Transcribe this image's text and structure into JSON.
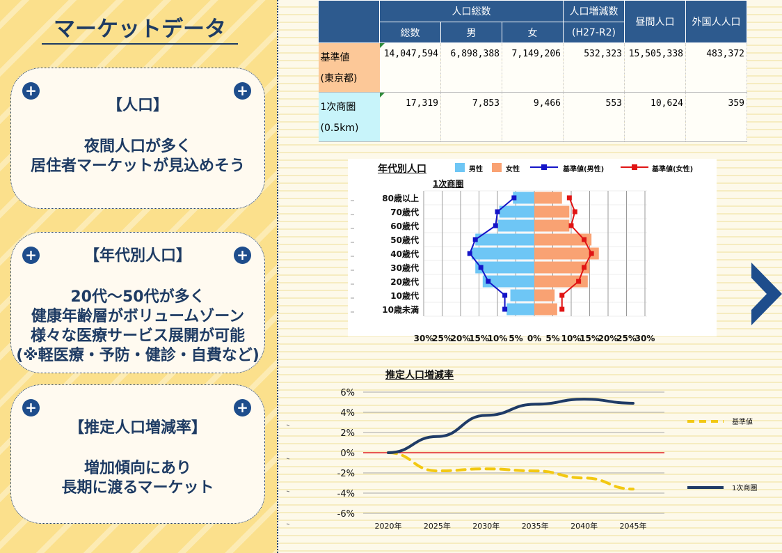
{
  "sidebar": {
    "title": "マーケットデータ",
    "cards": [
      {
        "title": "【人口】",
        "lines": [
          "夜間人口が多く",
          "居住者マーケットが見込めそう"
        ]
      },
      {
        "title": "【年代別人口】",
        "lines": [
          "20代～50代が多く",
          "健康年齢層がボリュームゾーン",
          "様々な医療サービス展開が可能",
          "(※軽医療・予防・健診・自費など)"
        ]
      },
      {
        "title": "【推定人口増減率】",
        "lines": [
          "増加傾向にあり",
          "長期に渡るマーケット"
        ]
      }
    ],
    "plus_symbol": "+"
  },
  "table": {
    "group_header": "人口総数",
    "headers": [
      "総数",
      "男",
      "女"
    ],
    "col_change": "人口増減数",
    "col_change_sub": "(H27-R2)",
    "col_daytime": "昼間人口",
    "col_foreign": "外国人人口",
    "rows": [
      {
        "label": [
          "基準値",
          "(東京都)"
        ],
        "values": [
          "14,047,594",
          "6,898,388",
          "7,149,206",
          "532,323",
          "15,505,338",
          "483,372"
        ],
        "color": "#fcc898"
      },
      {
        "label": [
          "1次商圏",
          "(0.5km)"
        ],
        "values": [
          "17,319",
          "7,853",
          "9,466",
          "553",
          "10,624",
          "359"
        ],
        "color": "#c8f4fa"
      }
    ]
  },
  "chart_data": [
    {
      "type": "bar",
      "title": "年代別人口",
      "subtitle": "1次商圏",
      "categories": [
        "80歳以上",
        "70歳代",
        "60歳代",
        "50歳代",
        "40歳代",
        "30歳代",
        "20歳代",
        "10歳代",
        "10歳未満"
      ],
      "x_ticks": [
        "30%",
        "25%",
        "20%",
        "15%",
        "10%",
        "5%",
        "0%",
        "5%",
        "10%",
        "15%",
        "20%",
        "25%",
        "30%"
      ],
      "xlim": [
        -30,
        30
      ],
      "series": [
        {
          "name": "男性",
          "kind": "bar",
          "color": "#6ec6f5",
          "values": [
            -5.8,
            -9.5,
            -9.8,
            -16.0,
            -17.0,
            -16.0,
            -14.0,
            -6.5,
            -7.5
          ]
        },
        {
          "name": "女性",
          "kind": "bar",
          "color": "#f9a273",
          "values": [
            7.5,
            9.5,
            9.5,
            15.5,
            17.5,
            15.0,
            14.5,
            5.5,
            6.2
          ]
        },
        {
          "name": "基準値(男性)",
          "kind": "line",
          "color": "#1414c8",
          "values": [
            -5.5,
            -10.0,
            -10.5,
            -16.0,
            -17.5,
            -14.5,
            -12.5,
            -8.0,
            -8.0
          ]
        },
        {
          "name": "基準値(女性)",
          "kind": "line",
          "color": "#e01414",
          "values": [
            9.5,
            11.0,
            10.0,
            13.5,
            15.5,
            13.5,
            12.0,
            7.5,
            7.5
          ]
        }
      ]
    },
    {
      "type": "line",
      "title": "推定人口増減率",
      "x": [
        "2020年",
        "2025年",
        "2030年",
        "2035年",
        "2040年",
        "2045年"
      ],
      "y_ticks": [
        "6%",
        "4%",
        "2%",
        "0%",
        "-2%",
        "-4%",
        "-6%"
      ],
      "ylim": [
        -6,
        6
      ],
      "grid": true,
      "series": [
        {
          "name": "基準値",
          "color": "#f2c812",
          "dashed": true,
          "values": [
            0.0,
            -1.8,
            -1.6,
            -1.8,
            -2.5,
            -3.6
          ]
        },
        {
          "name": "1次商圏",
          "color": "#1f3b66",
          "dashed": false,
          "values": [
            0.0,
            1.6,
            3.7,
            4.8,
            5.3,
            4.9
          ]
        }
      ],
      "legend_placement": "right"
    }
  ],
  "nav": {
    "next_icon": "chevron-right-icon"
  }
}
